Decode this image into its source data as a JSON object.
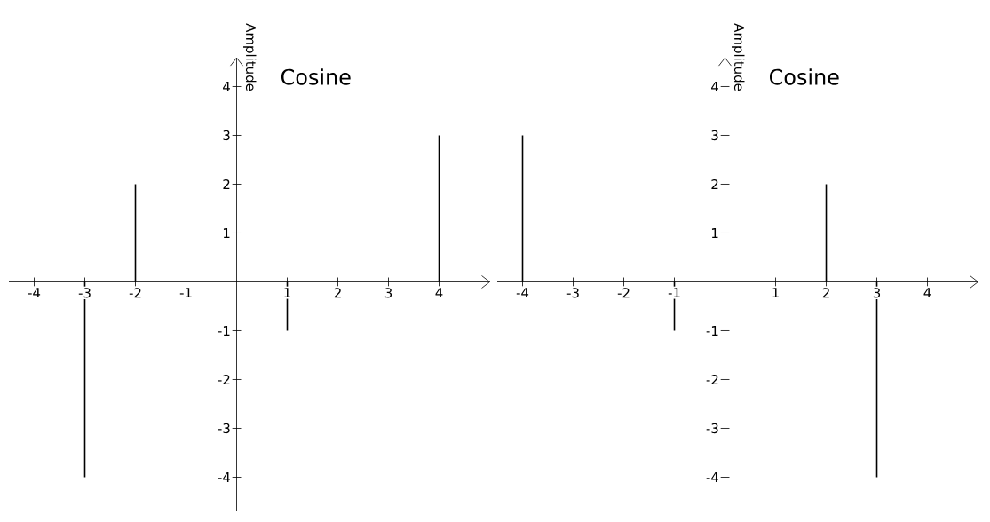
{
  "chart_data": [
    {
      "type": "bar",
      "title": "Cosine",
      "ylabel": "Amplitude",
      "x": [
        -3,
        -2,
        1,
        4
      ],
      "values": [
        -4,
        2,
        -1,
        3
      ],
      "color": "#000000",
      "xlim": [
        -4.5,
        5
      ],
      "ylim": [
        -4.7,
        4.6
      ],
      "xticks": [
        -4,
        -3,
        -2,
        -1,
        1,
        2,
        3,
        4
      ],
      "yticks": [
        -4,
        -3,
        -2,
        -1,
        1,
        2,
        3,
        4
      ]
    },
    {
      "type": "bar",
      "title": "Cosine",
      "ylabel": "Amplitude",
      "x": [
        -4,
        -1,
        2,
        3
      ],
      "values": [
        3,
        -1,
        2,
        -4
      ],
      "color": "#000000",
      "xlim": [
        -4.5,
        5
      ],
      "ylim": [
        -4.7,
        4.6
      ],
      "xticks": [
        -4,
        -3,
        -2,
        -1,
        1,
        2,
        3,
        4
      ],
      "yticks": [
        -4,
        -3,
        -2,
        -1,
        1,
        2,
        3,
        4
      ]
    }
  ]
}
